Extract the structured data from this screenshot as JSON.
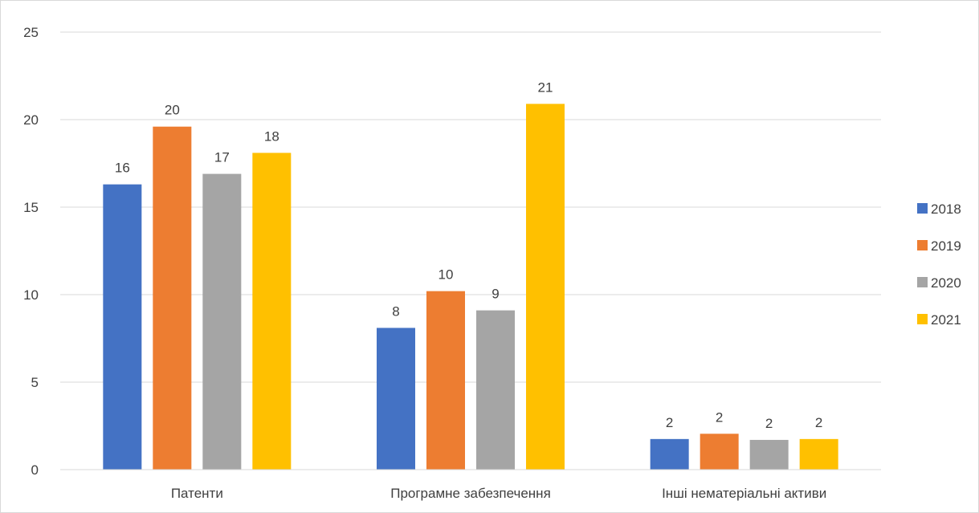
{
  "chart_data": {
    "type": "bar",
    "title": "",
    "xlabel": "",
    "ylabel": "",
    "categories": [
      "Патенти",
      "Програмне забезпечення",
      "Інші нематеріальні активи"
    ],
    "series": [
      {
        "name": "2018",
        "color": "#4472C4",
        "values": [
          16.3,
          8.1,
          1.75
        ],
        "labels": [
          "16",
          "8",
          "2"
        ]
      },
      {
        "name": "2019",
        "color": "#ED7D31",
        "values": [
          19.6,
          10.2,
          2.05
        ],
        "labels": [
          "20",
          "10",
          "2"
        ]
      },
      {
        "name": "2020",
        "color": "#A5A5A5",
        "values": [
          16.9,
          9.1,
          1.7
        ],
        "labels": [
          "17",
          "9",
          "2"
        ]
      },
      {
        "name": "2021",
        "color": "#FFC000",
        "values": [
          18.1,
          20.9,
          1.75
        ],
        "labels": [
          "18",
          "21",
          "2"
        ]
      }
    ],
    "ylim": [
      0,
      25
    ],
    "yticks": [
      0,
      5,
      10,
      15,
      20,
      25
    ],
    "grid": "horizontal",
    "legend_position": "right"
  }
}
